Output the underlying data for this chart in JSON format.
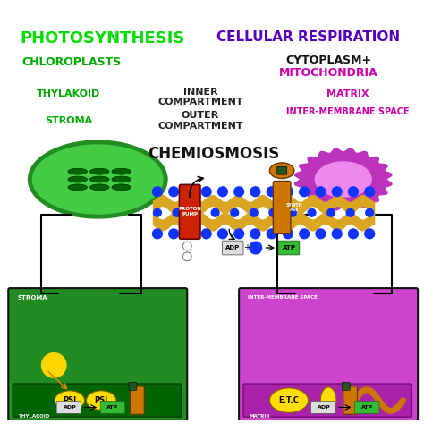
{
  "bg_color": "#ffffff",
  "title_left": "PHOTOSYNTHESIS",
  "title_right": "CELLULAR RESPIRATION",
  "title_left_color": "#00dd00",
  "title_right_color": "#5500bb",
  "subtitle_left": "CHLOROPLASTS",
  "subtitle_left_color": "#00aa00",
  "subtitle_right_line1": "CYTOPLASM+",
  "subtitle_right_line2": "MITOCHONDRIA",
  "subtitle_right_color1": "#111111",
  "subtitle_right_color2": "#cc00aa",
  "label_thylakoid": "THYLAKOID",
  "label_stroma": "STROMA",
  "label_thylakoid_color": "#00aa00",
  "label_stroma_color": "#00aa00",
  "label_inner1": "INNER",
  "label_inner2": "COMPARTMENT",
  "label_outer1": "OUTER",
  "label_outer2": "COMPARTMENT",
  "label_center_color": "#222222",
  "label_matrix": "MATRIX",
  "label_matrix_color": "#cc00aa",
  "label_inter": "INTER-MEMBRANE SPACE",
  "label_inter_color": "#cc00aa",
  "label_chemiosmosis": "CHEMIOSMOSIS",
  "label_chemiosmosis_color": "#111111",
  "chloroplast_outer_color": "#228B22",
  "chloroplast_inner_color": "#44cc44",
  "chloroplast_thylakoid_color": "#006400",
  "mitochondria_outer_color": "#bb33bb",
  "mitochondria_inner_color": "#ee88ee",
  "box_left_bg": "#228B22",
  "box_right_bg": "#cc44cc",
  "membrane_color": "#DAA520",
  "proton_color": "#1133ff",
  "pump_color": "#cc2200",
  "synthase_color": "#cc7700",
  "label_stroma_box": "STROMA",
  "label_thylakoid_box": "THYLAKOID",
  "label_inter_box": "INTER-MEMBRANE SPACE",
  "label_matrix_box": "MATRIX",
  "sun_color": "#FFD700",
  "psi_color": "#ffdd00",
  "etc_color": "#ffdd00"
}
